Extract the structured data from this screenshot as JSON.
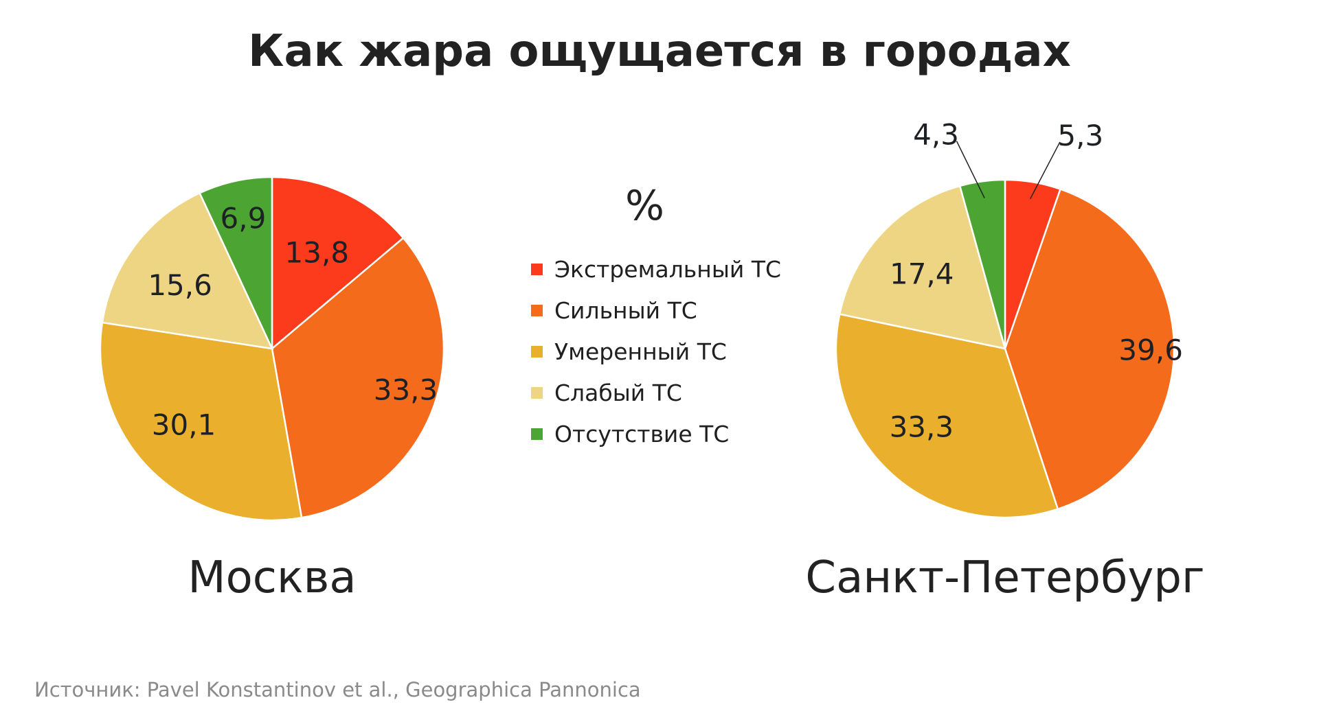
{
  "title": "Как жара ощущается в городах",
  "legend": {
    "unit": "%",
    "items": [
      {
        "label": "Экстремальный ТС",
        "color": "#fc3a1c"
      },
      {
        "label": "Сильный ТС",
        "color": "#f46b1c"
      },
      {
        "label": "Умеренный ТС",
        "color": "#eaaf2c"
      },
      {
        "label": "Слабый ТС",
        "color": "#edd584"
      },
      {
        "label": "Отсутствие ТС",
        "color": "#4ca532"
      }
    ]
  },
  "cities": [
    {
      "name": "Москва"
    },
    {
      "name": "Санкт-Петербург"
    }
  ],
  "source": "Источник: Pavel Konstantinov et al., Geographica Pannonica",
  "chart_data": [
    {
      "type": "pie",
      "title": "Москва",
      "unit": "%",
      "categories": [
        "Экстремальный ТС",
        "Сильный ТС",
        "Умеренный ТС",
        "Слабый ТС",
        "Отсутствие ТС"
      ],
      "values": [
        13.8,
        33.3,
        30.1,
        15.6,
        6.9
      ],
      "labels": [
        "13,8",
        "33,3",
        "30,1",
        "15,6",
        "6,9"
      ],
      "colors": [
        "#fc3a1c",
        "#f46b1c",
        "#eaaf2c",
        "#edd584",
        "#4ca532"
      ],
      "start_angle": "12 o'clock, clockwise"
    },
    {
      "type": "pie",
      "title": "Санкт-Петербург",
      "unit": "%",
      "categories": [
        "Экстремальный ТС",
        "Сильный ТС",
        "Умеренный ТС",
        "Слабый ТС",
        "Отсутствие ТС"
      ],
      "values": [
        5.3,
        39.6,
        33.3,
        17.4,
        4.3
      ],
      "labels": [
        "5,3",
        "39,6",
        "33,3",
        "17,4",
        "4,3"
      ],
      "colors": [
        "#fc3a1c",
        "#f46b1c",
        "#eaaf2c",
        "#edd584",
        "#4ca532"
      ],
      "start_angle": "12 o'clock, clockwise"
    }
  ]
}
